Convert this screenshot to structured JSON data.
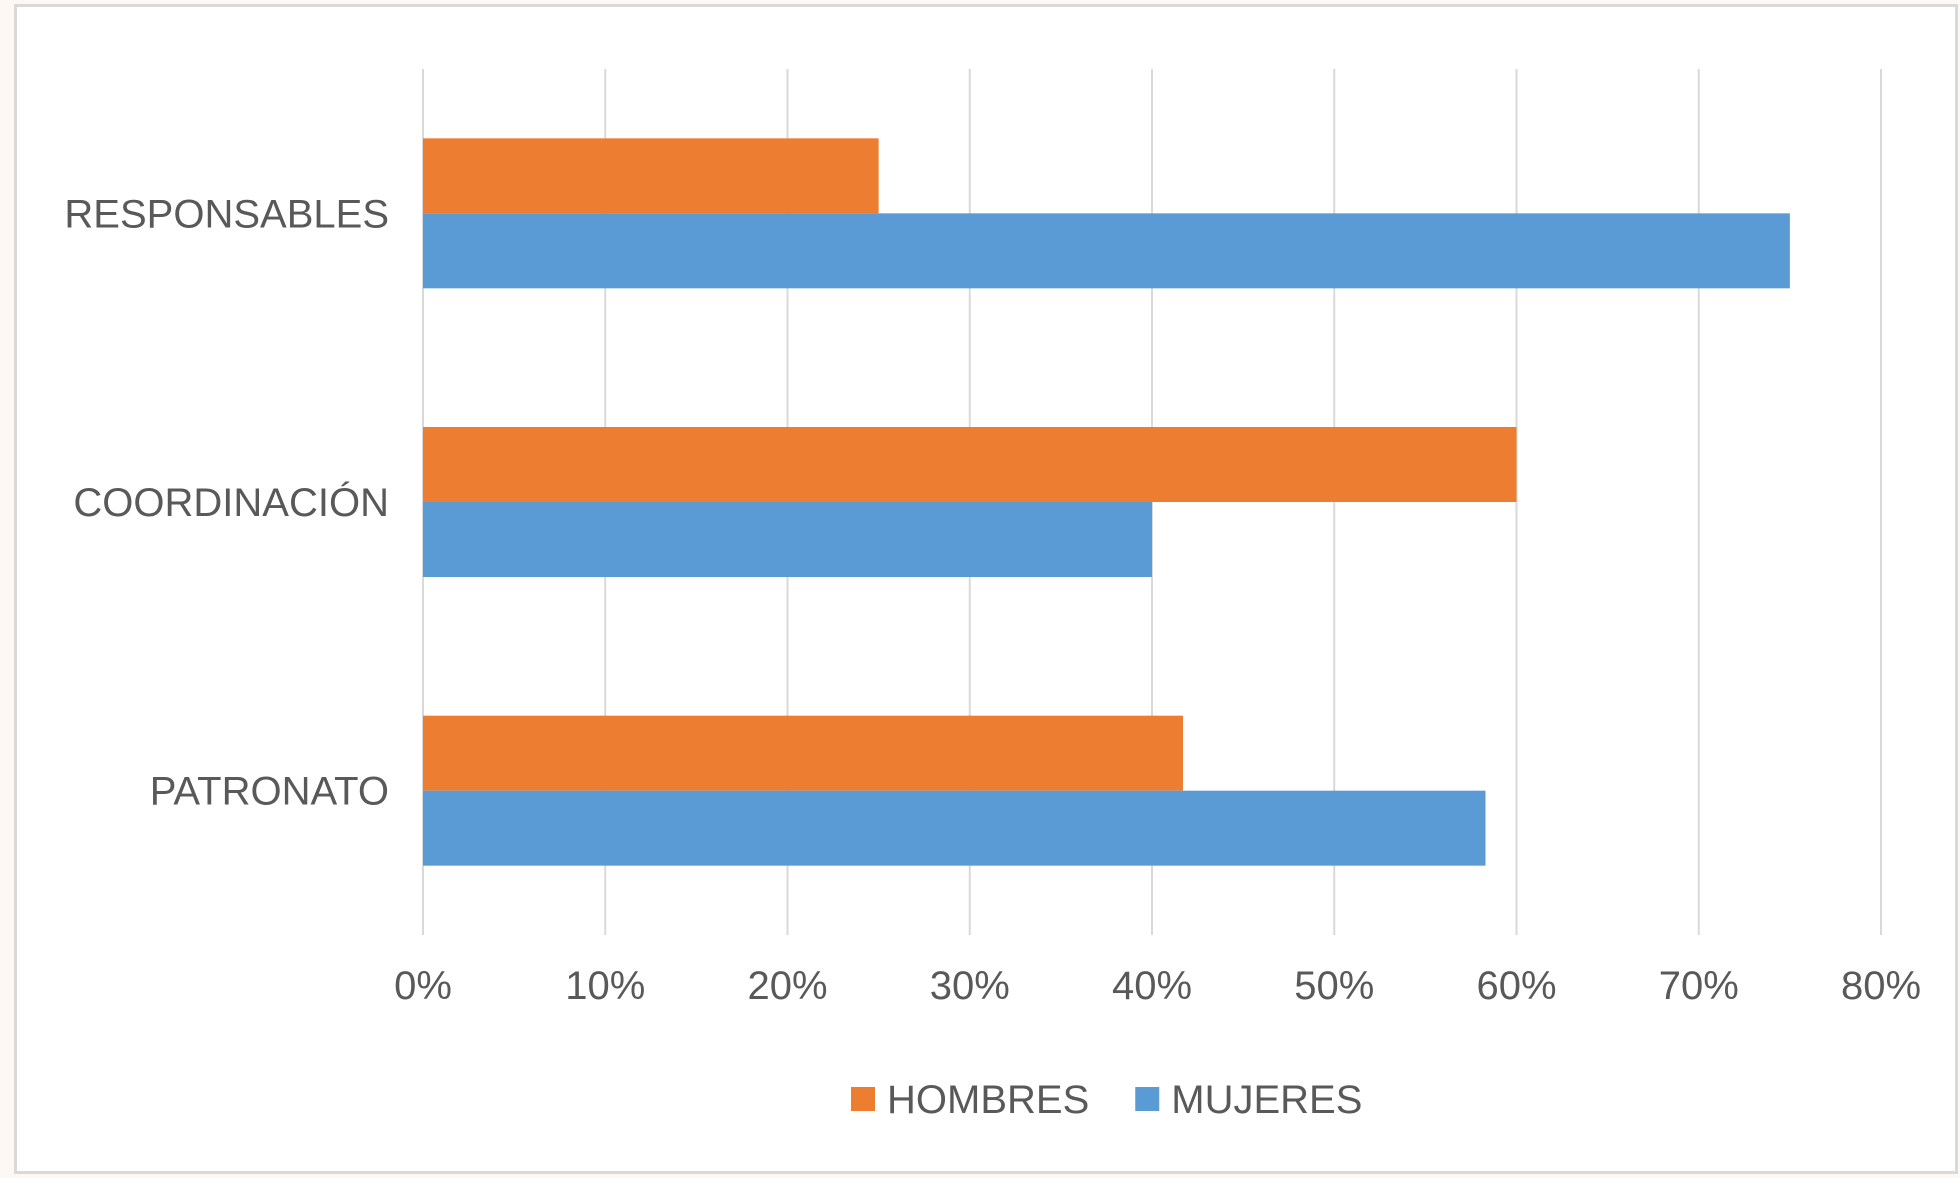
{
  "chart_data": {
    "type": "bar",
    "orientation": "horizontal",
    "categories": [
      "RESPONSABLES",
      "COORDINACIÓN",
      "PATRONATO"
    ],
    "series": [
      {
        "name": "HOMBRES",
        "color": "#ed7d31",
        "values": [
          0.25,
          0.6,
          0.417
        ]
      },
      {
        "name": "MUJERES",
        "color": "#5b9bd5",
        "values": [
          0.75,
          0.4,
          0.583
        ]
      }
    ],
    "xlim": [
      0,
      0.8
    ],
    "x_ticks": [
      0,
      0.1,
      0.2,
      0.3,
      0.4,
      0.5,
      0.6,
      0.7,
      0.8
    ],
    "x_tick_labels": [
      "0%",
      "10%",
      "20%",
      "30%",
      "40%",
      "50%",
      "60%",
      "70%",
      "80%"
    ],
    "grid": true,
    "legend": "bottom",
    "title": "",
    "xlabel": "",
    "ylabel": ""
  }
}
